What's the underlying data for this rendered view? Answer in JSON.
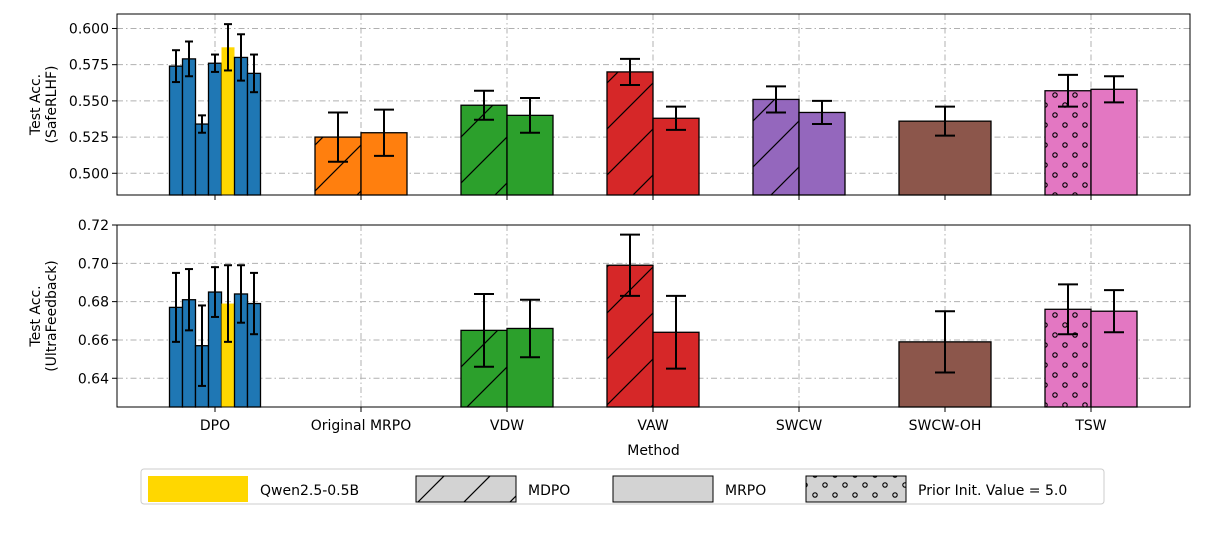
{
  "chart_data": [
    {
      "type": "bar",
      "panel": "top",
      "ylabel": [
        "Test Acc.",
        "(SafeRLHF)"
      ],
      "ylim": [
        0.485,
        0.61
      ],
      "yticks": [
        "0.500",
        "0.525",
        "0.550",
        "0.575",
        "0.600"
      ],
      "grid": true,
      "categories": [
        "DPO",
        "Original MRPO",
        "VDW",
        "VAW",
        "SWCW",
        "SWCW-OH",
        "TSW"
      ],
      "groups": [
        {
          "category": "DPO",
          "bars": [
            {
              "value": 0.574,
              "err": 0.011,
              "color": "#1f77b4",
              "hatch": ""
            },
            {
              "value": 0.579,
              "err": 0.012,
              "color": "#1f77b4",
              "hatch": ""
            },
            {
              "value": 0.534,
              "err": 0.006,
              "color": "#1f77b4",
              "hatch": ""
            },
            {
              "value": 0.576,
              "err": 0.006,
              "color": "#1f77b4",
              "hatch": ""
            },
            {
              "value": 0.587,
              "err": 0.016,
              "color": "#ffd700",
              "hatch": ""
            },
            {
              "value": 0.58,
              "err": 0.016,
              "color": "#1f77b4",
              "hatch": ""
            },
            {
              "value": 0.569,
              "err": 0.013,
              "color": "#1f77b4",
              "hatch": ""
            }
          ]
        },
        {
          "category": "Original MRPO",
          "bars": [
            {
              "value": 0.525,
              "err": 0.017,
              "color": "#ff7f0e",
              "hatch": "/"
            },
            {
              "value": 0.528,
              "err": 0.016,
              "color": "#ff7f0e",
              "hatch": ""
            }
          ]
        },
        {
          "category": "VDW",
          "bars": [
            {
              "value": 0.547,
              "err": 0.01,
              "color": "#2ca02c",
              "hatch": "/"
            },
            {
              "value": 0.54,
              "err": 0.012,
              "color": "#2ca02c",
              "hatch": ""
            }
          ]
        },
        {
          "category": "VAW",
          "bars": [
            {
              "value": 0.57,
              "err": 0.009,
              "color": "#d62728",
              "hatch": "/"
            },
            {
              "value": 0.538,
              "err": 0.008,
              "color": "#d62728",
              "hatch": ""
            }
          ]
        },
        {
          "category": "SWCW",
          "bars": [
            {
              "value": 0.551,
              "err": 0.009,
              "color": "#9467bd",
              "hatch": "/"
            },
            {
              "value": 0.542,
              "err": 0.008,
              "color": "#9467bd",
              "hatch": ""
            }
          ]
        },
        {
          "category": "SWCW-OH",
          "bars": [
            {
              "value": 0.536,
              "err": 0.01,
              "color": "#8c564b",
              "hatch": ""
            }
          ]
        },
        {
          "category": "TSW",
          "bars": [
            {
              "value": 0.557,
              "err": 0.011,
              "color": "#e377c2",
              "hatch": "o"
            },
            {
              "value": 0.558,
              "err": 0.009,
              "color": "#e377c2",
              "hatch": ""
            }
          ]
        }
      ]
    },
    {
      "type": "bar",
      "panel": "bottom",
      "ylabel": [
        "Test Acc.",
        "(UltraFeedback)"
      ],
      "ylim": [
        0.625,
        0.72
      ],
      "yticks": [
        "0.64",
        "0.66",
        "0.68",
        "0.70",
        "0.72"
      ],
      "grid": true,
      "xlabel": "Method",
      "categories": [
        "DPO",
        "Original MRPO",
        "VDW",
        "VAW",
        "SWCW",
        "SWCW-OH",
        "TSW"
      ],
      "groups": [
        {
          "category": "DPO",
          "bars": [
            {
              "value": 0.677,
              "err": 0.018,
              "color": "#1f77b4",
              "hatch": ""
            },
            {
              "value": 0.681,
              "err": 0.016,
              "color": "#1f77b4",
              "hatch": ""
            },
            {
              "value": 0.657,
              "err": 0.021,
              "color": "#1f77b4",
              "hatch": ""
            },
            {
              "value": 0.685,
              "err": 0.013,
              "color": "#1f77b4",
              "hatch": ""
            },
            {
              "value": 0.679,
              "err": 0.02,
              "color": "#ffd700",
              "hatch": ""
            },
            {
              "value": 0.684,
              "err": 0.015,
              "color": "#1f77b4",
              "hatch": ""
            },
            {
              "value": 0.679,
              "err": 0.016,
              "color": "#1f77b4",
              "hatch": ""
            }
          ]
        },
        {
          "category": "Original MRPO",
          "bars": []
        },
        {
          "category": "VDW",
          "bars": [
            {
              "value": 0.665,
              "err": 0.019,
              "color": "#2ca02c",
              "hatch": "/"
            },
            {
              "value": 0.666,
              "err": 0.015,
              "color": "#2ca02c",
              "hatch": ""
            }
          ]
        },
        {
          "category": "VAW",
          "bars": [
            {
              "value": 0.699,
              "err": 0.016,
              "color": "#d62728",
              "hatch": "/"
            },
            {
              "value": 0.664,
              "err": 0.019,
              "color": "#d62728",
              "hatch": ""
            }
          ]
        },
        {
          "category": "SWCW",
          "bars": []
        },
        {
          "category": "SWCW-OH",
          "bars": [
            {
              "value": 0.659,
              "err": 0.016,
              "color": "#8c564b",
              "hatch": ""
            }
          ]
        },
        {
          "category": "TSW",
          "bars": [
            {
              "value": 0.676,
              "err": 0.013,
              "color": "#e377c2",
              "hatch": "o"
            },
            {
              "value": 0.675,
              "err": 0.011,
              "color": "#e377c2",
              "hatch": ""
            }
          ]
        }
      ]
    }
  ],
  "legend": {
    "placement": "bottom",
    "entries": [
      {
        "label": "Qwen2.5-0.5B",
        "color": "#ffd700",
        "hatch": ""
      },
      {
        "label": "MDPO",
        "color": "#d3d3d3",
        "hatch": "/"
      },
      {
        "label": "MRPO",
        "color": "#d3d3d3",
        "hatch": ""
      },
      {
        "label": "Prior Init. Value = 5.0",
        "color": "#d3d3d3",
        "hatch": "o"
      }
    ]
  }
}
